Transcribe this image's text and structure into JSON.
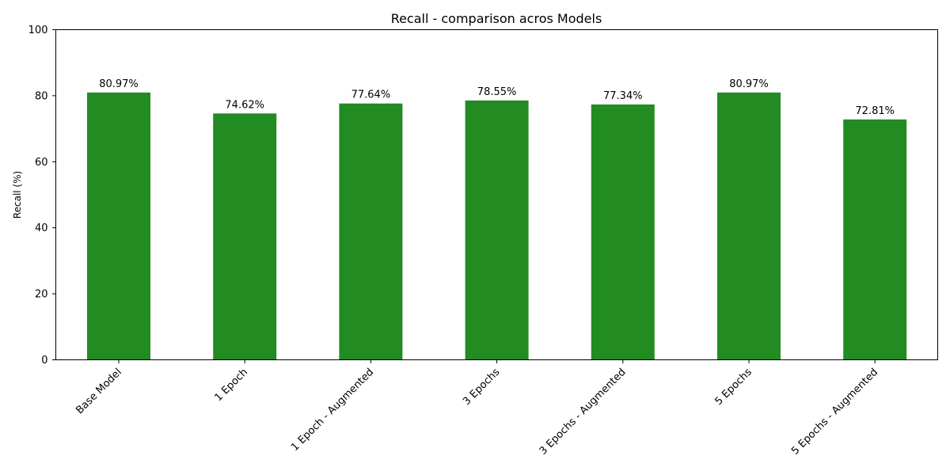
{
  "chart_data": {
    "type": "bar",
    "title": "Recall - comparison acros Models",
    "xlabel": "",
    "ylabel": "Recall (%)",
    "ylim": [
      0,
      100
    ],
    "yticks": [
      0,
      20,
      40,
      60,
      80,
      100
    ],
    "ytick_labels": [
      "0",
      "20",
      "40",
      "60",
      "80",
      "100"
    ],
    "categories": [
      "Base Model",
      "1 Epoch",
      "1 Epoch - Augmented",
      "3 Epochs",
      "3 Epochs - Augmented",
      "5 Epochs",
      "5 Epochs - Augmented"
    ],
    "values": [
      80.97,
      74.62,
      77.64,
      78.55,
      77.34,
      80.97,
      72.81
    ],
    "data_labels": [
      "80.97%",
      "74.62%",
      "77.64%",
      "78.55%",
      "77.34%",
      "80.97%",
      "72.81%"
    ],
    "bar_color": "#228b22",
    "grid": false,
    "legend": false
  }
}
